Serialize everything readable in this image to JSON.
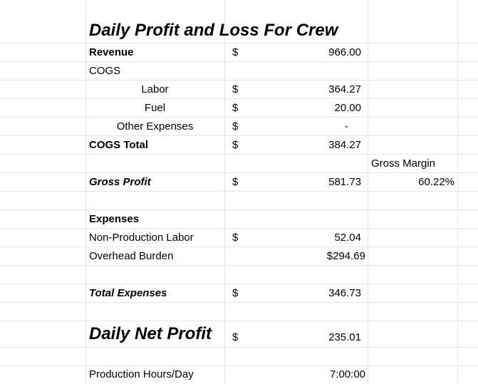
{
  "title": "Daily Profit and Loss For Crew",
  "currency_symbol": "$",
  "rows": {
    "revenue": {
      "label": "Revenue",
      "value": "966.00"
    },
    "cogs": {
      "label": "COGS"
    },
    "labor": {
      "label": "Labor",
      "value": "364.27"
    },
    "fuel": {
      "label": "Fuel",
      "value": "20.00"
    },
    "other_expenses": {
      "label": "Other Expenses",
      "value": "-"
    },
    "cogs_total": {
      "label": "COGS Total",
      "value": "384.27"
    },
    "gross_margin_header": {
      "label": "Gross Margin"
    },
    "gross_profit": {
      "label": "Gross Profit",
      "value": "581.73",
      "margin": "60.22%"
    },
    "expenses": {
      "label": "Expenses"
    },
    "non_production_labor": {
      "label": "Non-Production Labor",
      "value": "52.04"
    },
    "overhead_burden": {
      "label": "Overhead Burden",
      "value": "$294.69"
    },
    "total_expenses": {
      "label": "Total Expenses",
      "value": "346.73"
    },
    "daily_net_profit": {
      "label": "Daily Net Profit",
      "value": "235.01"
    },
    "production_hours": {
      "label": "Production Hours/Day",
      "value": "7:00:00"
    }
  }
}
